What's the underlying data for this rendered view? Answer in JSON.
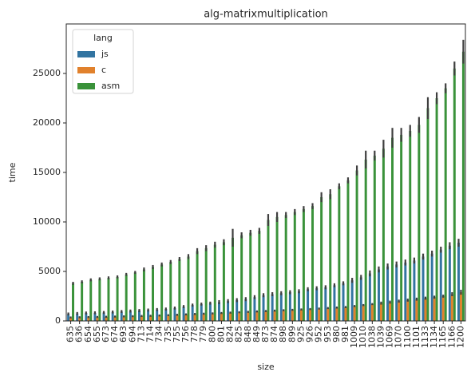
{
  "chart_data": {
    "type": "bar",
    "title": "alg-matrixmultiplication",
    "x_label": "size",
    "y_label": "time",
    "categories": [
      "635",
      "636",
      "654",
      "655",
      "673",
      "674",
      "693",
      "694",
      "713",
      "714",
      "734",
      "735",
      "755",
      "756",
      "778",
      "779",
      "800",
      "801",
      "824",
      "825",
      "848",
      "849",
      "873",
      "874",
      "898",
      "899",
      "925",
      "926",
      "952",
      "953",
      "980",
      "981",
      "1009",
      "1010",
      "1038",
      "1039",
      "1069",
      "1070",
      "1100",
      "1101",
      "1133",
      "1134",
      "1165",
      "1166",
      "1200"
    ],
    "series": [
      {
        "name": "js",
        "color": "#3274a1",
        "values": [
          700,
          750,
          800,
          820,
          850,
          900,
          950,
          1000,
          1050,
          1100,
          1150,
          1200,
          1300,
          1450,
          1600,
          1700,
          1800,
          1900,
          2000,
          2100,
          2200,
          2400,
          2600,
          2700,
          2800,
          2900,
          3000,
          3200,
          3300,
          3400,
          3600,
          3800,
          4100,
          4400,
          4800,
          5200,
          5500,
          5700,
          5900,
          6100,
          6500,
          6800,
          7200,
          7600,
          7900
        ],
        "errors": [
          150,
          150,
          150,
          150,
          150,
          150,
          150,
          150,
          150,
          150,
          150,
          150,
          150,
          150,
          150,
          150,
          150,
          200,
          200,
          200,
          200,
          200,
          200,
          200,
          200,
          200,
          200,
          200,
          200,
          200,
          200,
          200,
          250,
          250,
          300,
          300,
          300,
          300,
          300,
          300,
          300,
          300,
          300,
          350,
          400
        ]
      },
      {
        "name": "c",
        "color": "#e1812c",
        "values": [
          350,
          370,
          390,
          400,
          420,
          440,
          460,
          480,
          500,
          520,
          550,
          580,
          620,
          660,
          700,
          730,
          760,
          800,
          840,
          880,
          920,
          960,
          1000,
          1040,
          1080,
          1120,
          1160,
          1200,
          1250,
          1300,
          1350,
          1400,
          1500,
          1600,
          1700,
          1800,
          1900,
          2000,
          2100,
          2200,
          2300,
          2400,
          2500,
          2700,
          2900
        ],
        "errors": [
          100,
          100,
          100,
          100,
          100,
          100,
          100,
          100,
          100,
          100,
          100,
          100,
          100,
          100,
          100,
          100,
          100,
          100,
          100,
          100,
          100,
          100,
          100,
          100,
          100,
          100,
          100,
          100,
          100,
          100,
          100,
          100,
          100,
          100,
          100,
          150,
          150,
          150,
          150,
          150,
          150,
          150,
          150,
          200,
          250
        ]
      },
      {
        "name": "asm",
        "color": "#3a923a",
        "values": [
          3800,
          3950,
          4150,
          4250,
          4350,
          4450,
          4700,
          4900,
          5200,
          5450,
          5700,
          5950,
          6250,
          6500,
          7050,
          7350,
          7700,
          7950,
          8400,
          8650,
          8900,
          9100,
          10200,
          10500,
          10700,
          11000,
          11300,
          11600,
          12500,
          12800,
          13600,
          14200,
          15200,
          16300,
          16700,
          17400,
          18500,
          18800,
          19200,
          19800,
          21500,
          22500,
          23500,
          25500,
          27200
        ],
        "errors": [
          150,
          150,
          150,
          150,
          150,
          150,
          150,
          150,
          200,
          200,
          200,
          200,
          200,
          250,
          300,
          300,
          300,
          300,
          900,
          300,
          300,
          300,
          600,
          500,
          300,
          300,
          300,
          300,
          500,
          500,
          300,
          300,
          500,
          900,
          500,
          900,
          1000,
          700,
          600,
          800,
          1100,
          600,
          500,
          700,
          1200
        ]
      }
    ],
    "ylim": [
      0,
      30000
    ],
    "yticks": [
      0,
      5000,
      10000,
      15000,
      20000,
      25000
    ],
    "legend_title": "lang",
    "legend": "upper left"
  }
}
